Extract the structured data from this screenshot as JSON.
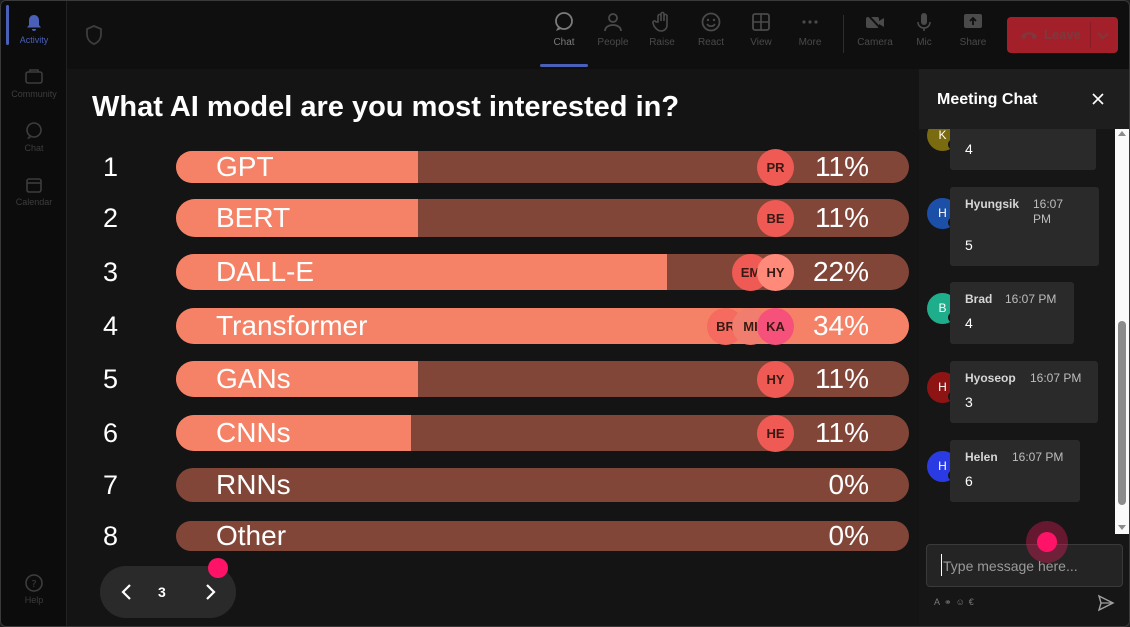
{
  "rail": {
    "items": [
      {
        "label": "Activity",
        "icon": "bell-icon",
        "active": true
      },
      {
        "label": "Community",
        "icon": "community-icon"
      },
      {
        "label": "Chat",
        "icon": "chat-icon"
      },
      {
        "label": "Calendar",
        "icon": "calendar-icon"
      }
    ],
    "help": "Help"
  },
  "toolbar": {
    "chat": "Chat",
    "people": "People",
    "raise": "Raise",
    "react": "React",
    "view": "View",
    "more": "More",
    "camera": "Camera",
    "mic": "Mic",
    "share": "Share",
    "leave": "Leave"
  },
  "poll": {
    "question": "What AI model are you most interested in?",
    "options": [
      {
        "num": "1",
        "label": "GPT",
        "pct": "11%",
        "value": 0.33,
        "avatars": [
          "PR"
        ]
      },
      {
        "num": "2",
        "label": "BERT",
        "pct": "11%",
        "value": 0.33,
        "avatars": [
          "BE"
        ]
      },
      {
        "num": "3",
        "label": "DALL-E",
        "pct": "22%",
        "value": 0.67,
        "avatars": [
          "EM",
          "HY"
        ]
      },
      {
        "num": "4",
        "label": "Transformer",
        "pct": "34%",
        "value": 1.0,
        "avatars": [
          "BR",
          "MI",
          "KA"
        ]
      },
      {
        "num": "5",
        "label": "GANs",
        "pct": "11%",
        "value": 0.33,
        "avatars": [
          "HY"
        ]
      },
      {
        "num": "6",
        "label": "CNNs",
        "pct": "11%",
        "value": 0.32,
        "avatars": [
          "HE"
        ]
      },
      {
        "num": "7",
        "label": "RNNs",
        "pct": "0%",
        "value": 0,
        "avatars": []
      },
      {
        "num": "8",
        "label": "Other",
        "pct": "0%",
        "value": 0,
        "avatars": []
      }
    ],
    "page": "3",
    "colors": {
      "fill": "#f58266",
      "track": "#824639",
      "accent": "#ff1368"
    }
  },
  "chat": {
    "title": "Meeting Chat",
    "messages": [
      {
        "initial": "K",
        "name": "",
        "time": "",
        "body": "4",
        "color": "#7a6a10"
      },
      {
        "initial": "H",
        "name": "Hyungsik",
        "time": "16:07 PM",
        "body": "5",
        "color": "#1c4fa8"
      },
      {
        "initial": "B",
        "name": "Brad",
        "time": "16:07 PM",
        "body": "4",
        "color": "#1fae8b"
      },
      {
        "initial": "H",
        "name": "Hyoseop",
        "time": "16:07 PM",
        "body": "3",
        "color": "#8e1414"
      },
      {
        "initial": "H",
        "name": "Helen",
        "time": "16:07 PM",
        "body": "6",
        "color": "#2b3be3"
      }
    ],
    "placeholder": "Type message here..."
  }
}
